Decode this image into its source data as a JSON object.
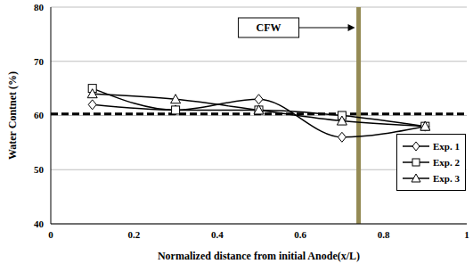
{
  "chart_data": {
    "type": "line",
    "x_label": "Normalized distance from initial Anode(x/L)",
    "y_label": "Water  Contnet (%)",
    "x": [
      0.1,
      0.3,
      0.5,
      0.7,
      0.9
    ],
    "series": [
      {
        "name": "Exp. 1",
        "color": "#000000",
        "marker": "diamond",
        "line_style": "solid",
        "values": [
          62,
          61,
          63,
          56,
          58
        ]
      },
      {
        "name": "Exp. 2",
        "color": "#000000",
        "marker": "square",
        "line_style": "solid",
        "values": [
          65,
          61,
          61,
          60,
          58
        ]
      },
      {
        "name": "Exp. 3",
        "color": "#000000",
        "marker": "triangle",
        "line_style": "solid",
        "values": [
          64,
          63,
          61,
          59,
          58
        ]
      }
    ],
    "xlim": [
      0,
      1
    ],
    "xticks": [
      0,
      0.2,
      0.4,
      0.6,
      0.8,
      1
    ],
    "ylim": [
      40,
      80
    ],
    "yticks": [
      40,
      50,
      60,
      70,
      80
    ],
    "grid": true,
    "legend": "lower right",
    "hlines": [
      {
        "y": 60.3,
        "color": "#000000",
        "line_style": "dashed"
      }
    ],
    "vlines": [
      {
        "x": 0.74,
        "color": "#948a54",
        "label": "CFW"
      }
    ]
  }
}
